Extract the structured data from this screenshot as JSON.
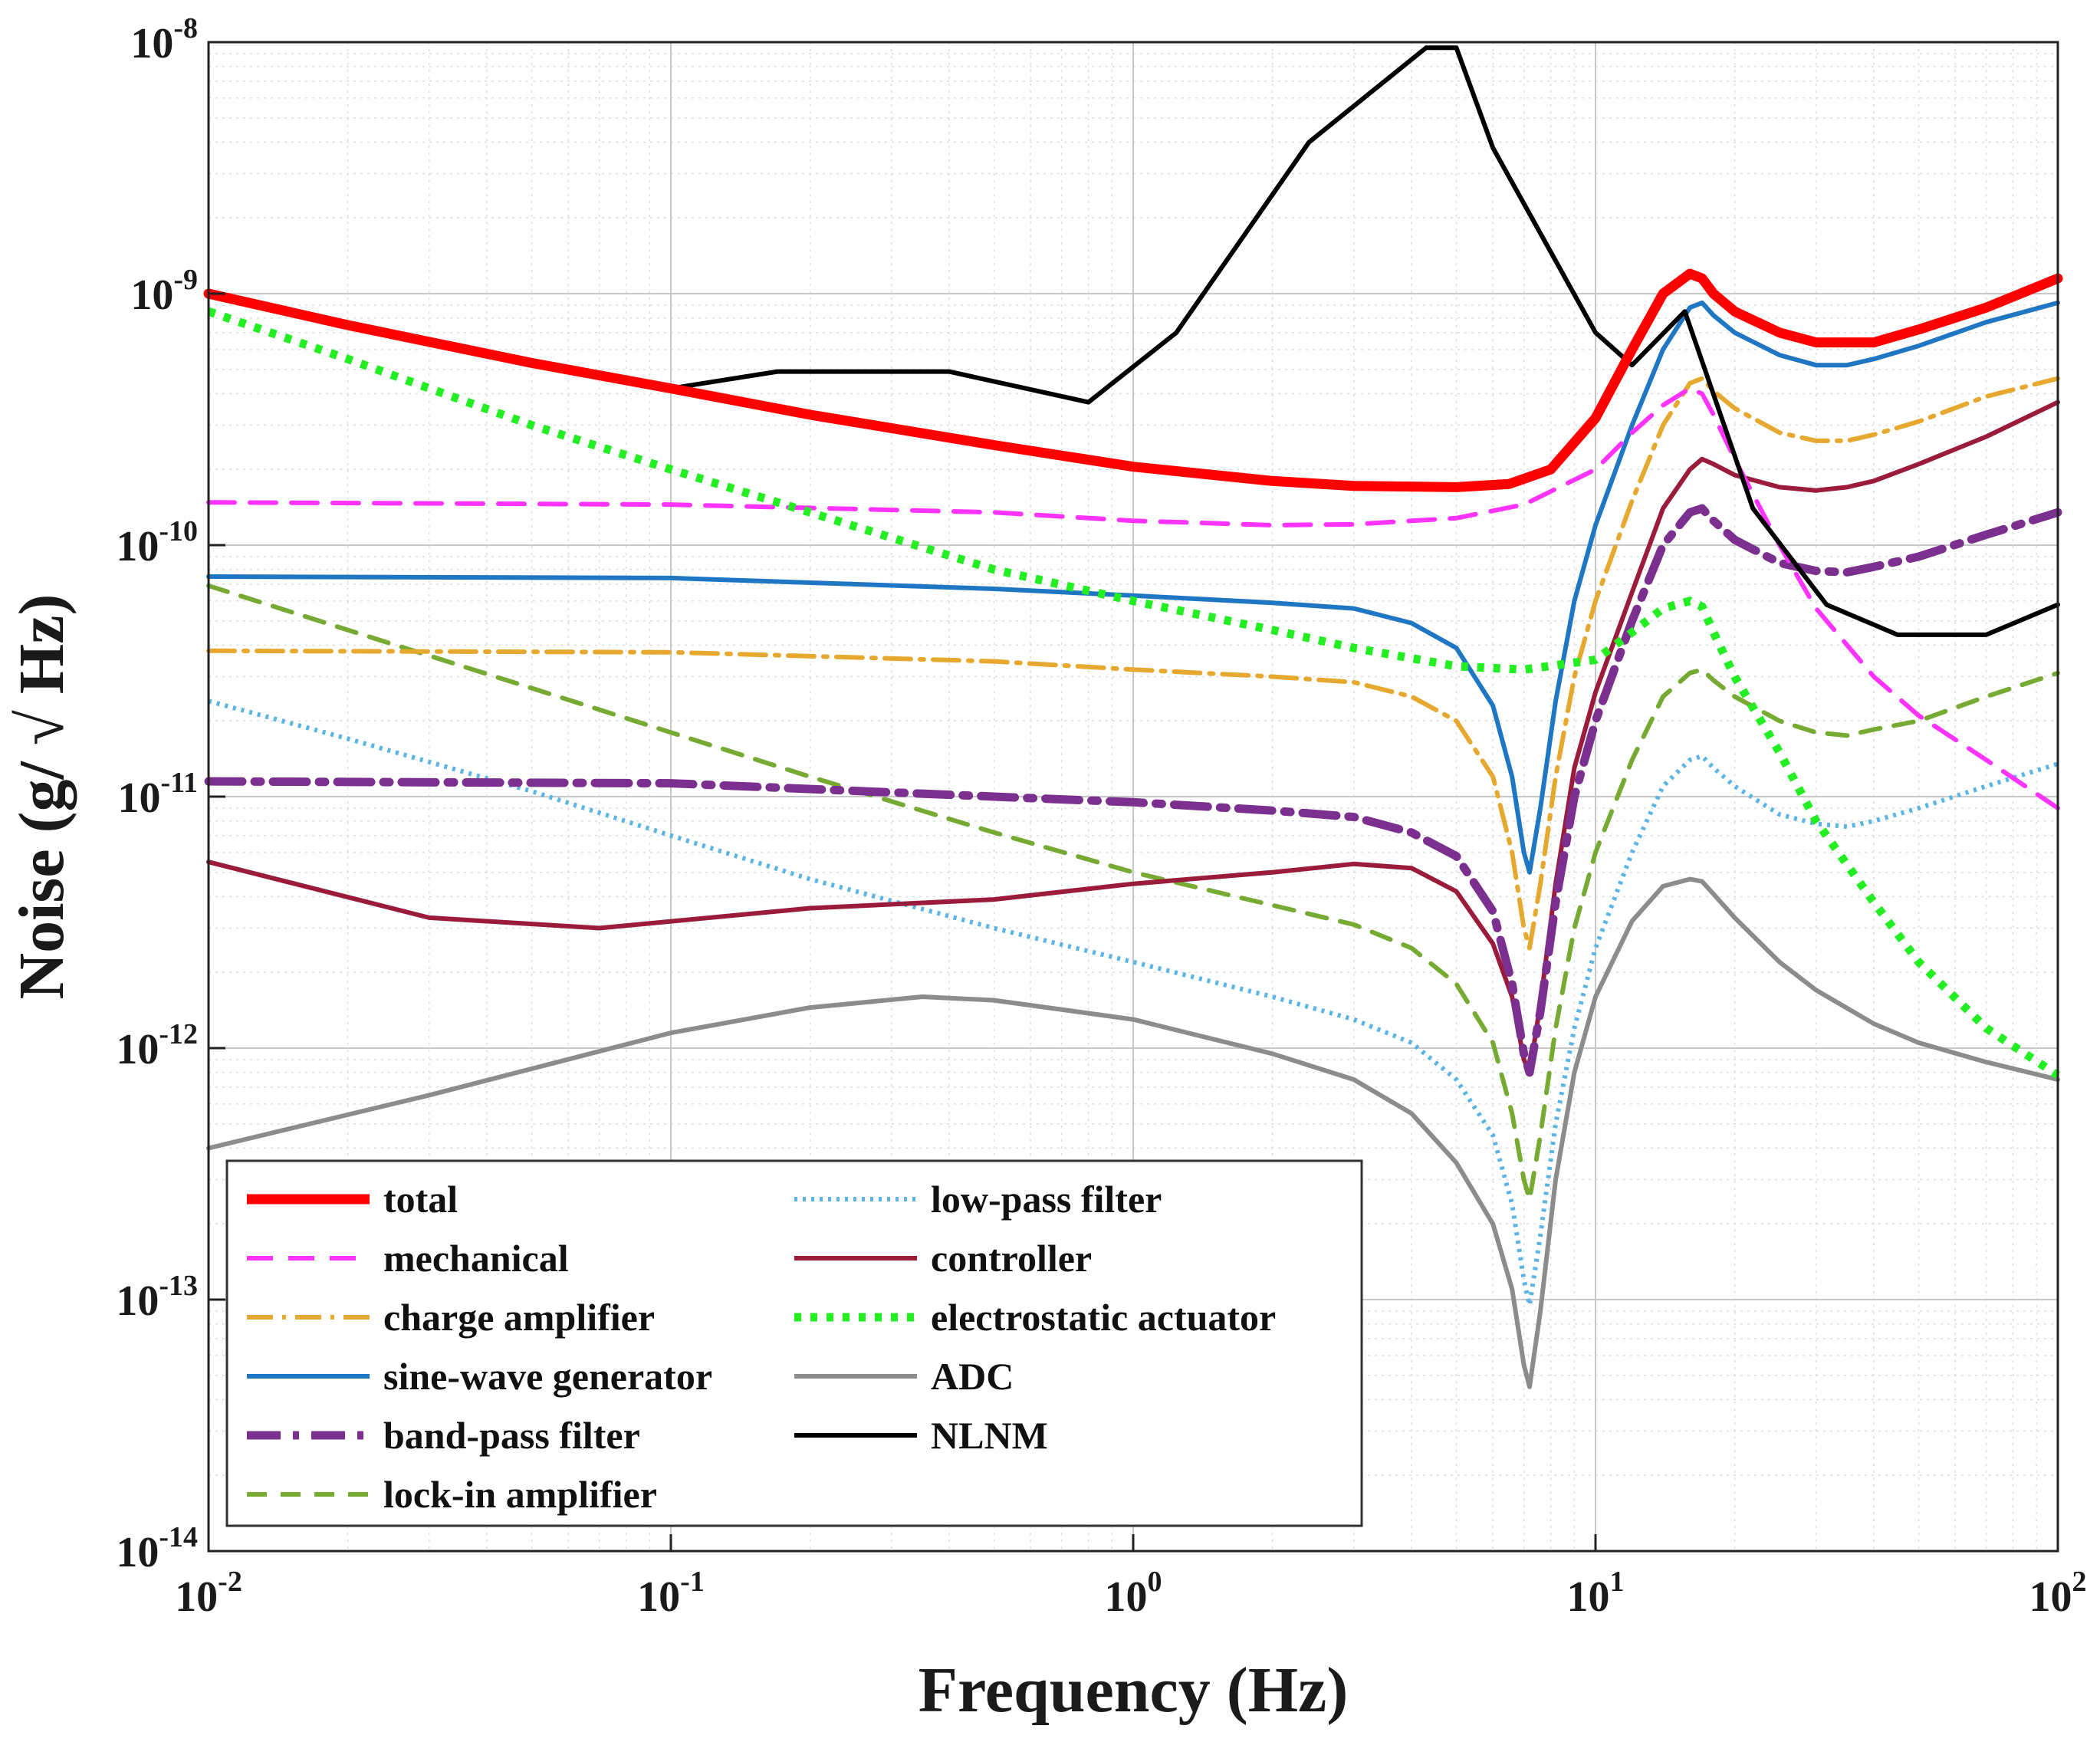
{
  "chart_data": {
    "type": "line",
    "xscale": "log",
    "yscale": "log",
    "xlim": [
      0.01,
      100
    ],
    "ylim": [
      1e-14,
      1e-08
    ],
    "grid": true,
    "xlabel": "Frequency (Hz)",
    "ylabel": "Noise (g/ √ Hz)",
    "legend_position": "bottom-left",
    "x_ticks": [
      {
        "base": "10",
        "exp": "-2"
      },
      {
        "base": "10",
        "exp": "-1"
      },
      {
        "base": "10",
        "exp": "0"
      },
      {
        "base": "10",
        "exp": "1"
      },
      {
        "base": "10",
        "exp": "2"
      }
    ],
    "y_ticks": [
      {
        "base": "10",
        "exp": "-8"
      },
      {
        "base": "10",
        "exp": "-9"
      },
      {
        "base": "10",
        "exp": "-10"
      },
      {
        "base": "10",
        "exp": "-11"
      },
      {
        "base": "10",
        "exp": "-12"
      },
      {
        "base": "10",
        "exp": "-13"
      },
      {
        "base": "10",
        "exp": "-14"
      }
    ],
    "series": [
      {
        "name": "total",
        "color": "#ff0000",
        "dash": "solid",
        "width": 13,
        "x": [
          0.01,
          0.02,
          0.05,
          0.1,
          0.2,
          0.5,
          1,
          2,
          3,
          5,
          6.5,
          8,
          10,
          12,
          14,
          16,
          17,
          18,
          20,
          25,
          30,
          40,
          50,
          70,
          100
        ],
        "y": [
          1e-09,
          7.5e-10,
          5.3e-10,
          4.2e-10,
          3.3e-10,
          2.5e-10,
          2.05e-10,
          1.8e-10,
          1.72e-10,
          1.7e-10,
          1.75e-10,
          2e-10,
          3.2e-10,
          6e-10,
          1e-09,
          1.2e-09,
          1.15e-09,
          1e-09,
          8.5e-10,
          7e-10,
          6.4e-10,
          6.4e-10,
          7.2e-10,
          8.8e-10,
          1.15e-09
        ]
      },
      {
        "name": "mechanical",
        "color": "#ff33ff",
        "dash": "long-dash",
        "width": 6,
        "x": [
          0.01,
          0.1,
          0.5,
          1,
          2,
          3,
          5,
          7,
          10,
          12,
          14,
          16,
          17,
          18,
          20,
          25,
          30,
          40,
          50,
          70,
          100
        ],
        "y": [
          1.48e-10,
          1.45e-10,
          1.35e-10,
          1.25e-10,
          1.2e-10,
          1.21e-10,
          1.28e-10,
          1.45e-10,
          2e-10,
          2.8e-10,
          3.6e-10,
          4.2e-10,
          4e-10,
          3.3e-10,
          2.2e-10,
          1e-10,
          5.6e-11,
          3e-11,
          2.1e-11,
          1.4e-11,
          9e-12
        ]
      },
      {
        "name": "charge amplifier",
        "color": "#e6a82e",
        "dash": "dash-dot",
        "width": 6,
        "x": [
          0.01,
          0.1,
          0.5,
          1,
          2,
          3,
          4,
          5,
          6,
          6.6,
          7.0,
          7.2,
          7.6,
          8.2,
          9,
          10,
          12,
          14,
          16,
          17,
          18,
          20,
          25,
          30,
          35,
          40,
          50,
          70,
          100
        ],
        "y": [
          3.8e-11,
          3.75e-11,
          3.45e-11,
          3.2e-11,
          3e-11,
          2.85e-11,
          2.5e-11,
          2e-11,
          1.2e-11,
          6e-12,
          3e-12,
          2.5e-12,
          4.5e-12,
          1.2e-11,
          3e-11,
          6e-11,
          1.5e-10,
          3e-10,
          4.4e-10,
          4.6e-10,
          4.1e-10,
          3.5e-10,
          2.8e-10,
          2.6e-10,
          2.6e-10,
          2.75e-10,
          3.1e-10,
          3.9e-10,
          4.6e-10
        ]
      },
      {
        "name": "sine-wave generator",
        "color": "#1f77c4",
        "dash": "solid",
        "width": 6,
        "x": [
          0.01,
          0.1,
          0.5,
          1,
          2,
          3,
          4,
          5,
          6,
          6.6,
          7.0,
          7.2,
          7.6,
          8.2,
          9,
          10,
          12,
          14,
          16,
          17,
          18,
          20,
          25,
          30,
          35,
          40,
          50,
          70,
          100
        ],
        "y": [
          7.5e-11,
          7.4e-11,
          6.7e-11,
          6.3e-11,
          5.9e-11,
          5.6e-11,
          4.9e-11,
          3.9e-11,
          2.3e-11,
          1.2e-11,
          6e-12,
          5e-12,
          9e-12,
          2.4e-11,
          6e-11,
          1.2e-10,
          3e-10,
          6e-10,
          8.8e-10,
          9.2e-10,
          8.2e-10,
          7e-10,
          5.7e-10,
          5.2e-10,
          5.2e-10,
          5.5e-10,
          6.2e-10,
          7.7e-10,
          9.2e-10
        ]
      },
      {
        "name": "band-pass filter",
        "color": "#7b2f8e",
        "dash": "dash-dot-thick",
        "width": 11,
        "x": [
          0.01,
          0.1,
          0.5,
          1,
          2,
          3,
          4,
          5,
          6,
          6.6,
          7.0,
          7.2,
          7.6,
          8.2,
          9,
          10,
          12,
          14,
          16,
          17,
          18,
          20,
          25,
          30,
          35,
          40,
          50,
          70,
          100
        ],
        "y": [
          1.15e-11,
          1.13e-11,
          1e-11,
          9.5e-12,
          8.8e-12,
          8.3e-12,
          7.2e-12,
          5.8e-12,
          3.5e-12,
          1.8e-12,
          9.5e-13,
          8e-13,
          1.4e-12,
          3.8e-12,
          1e-11,
          2e-11,
          5e-11,
          1e-10,
          1.35e-10,
          1.4e-10,
          1.25e-10,
          1.05e-10,
          8.5e-11,
          7.9e-11,
          7.8e-11,
          8.2e-11,
          9e-11,
          1.1e-10,
          1.35e-10
        ]
      },
      {
        "name": "lock-in amplifier",
        "color": "#77aa33",
        "dash": "medium-dash",
        "width": 6,
        "x": [
          0.01,
          0.02,
          0.05,
          0.1,
          0.2,
          0.5,
          1,
          2,
          3,
          4,
          5,
          6,
          6.6,
          7.0,
          7.2,
          7.6,
          8.2,
          9,
          10,
          12,
          14,
          16,
          17,
          18,
          20,
          25,
          30,
          35,
          40,
          50,
          70,
          100
        ],
        "y": [
          6.9e-11,
          4.6e-11,
          2.7e-11,
          1.8e-11,
          1.2e-11,
          7.2e-12,
          5e-12,
          3.7e-12,
          3.1e-12,
          2.5e-12,
          1.8e-12,
          1.05e-12,
          5.5e-13,
          3e-13,
          2.5e-13,
          4.5e-13,
          1.2e-12,
          3e-12,
          6e-12,
          1.4e-11,
          2.5e-11,
          3.1e-11,
          3.2e-11,
          2.9e-11,
          2.5e-11,
          2e-11,
          1.8e-11,
          1.75e-11,
          1.85e-11,
          2e-11,
          2.5e-11,
          3.1e-11
        ]
      },
      {
        "name": "low-pass filter",
        "color": "#5ab4e5",
        "dash": "dotted",
        "width": 6,
        "x": [
          0.01,
          0.02,
          0.05,
          0.1,
          0.2,
          0.5,
          1,
          2,
          3,
          4,
          5,
          6,
          6.6,
          7.0,
          7.2,
          7.6,
          8.2,
          9,
          10,
          12,
          14,
          16,
          17,
          18,
          20,
          25,
          30,
          35,
          40,
          50,
          70,
          100
        ],
        "y": [
          2.4e-11,
          1.7e-11,
          1.05e-11,
          7e-12,
          4.7e-12,
          3e-12,
          2.2e-12,
          1.6e-12,
          1.3e-12,
          1.05e-12,
          7.5e-13,
          4.5e-13,
          2.4e-13,
          1.2e-13,
          9.5e-14,
          1.8e-13,
          5e-13,
          1.2e-12,
          2.5e-12,
          6e-12,
          1.1e-11,
          1.4e-11,
          1.45e-11,
          1.3e-11,
          1.1e-11,
          8.5e-12,
          7.8e-12,
          7.6e-12,
          8e-12,
          9e-12,
          1.1e-11,
          1.35e-11
        ]
      },
      {
        "name": "controller",
        "color": "#9b1c3a",
        "dash": "solid",
        "width": 6,
        "x": [
          0.01,
          0.03,
          0.07,
          0.2,
          0.5,
          1,
          2,
          3,
          4,
          5,
          6,
          6.6,
          7.0,
          7.2,
          7.6,
          8.2,
          9,
          10,
          12,
          14,
          16,
          17,
          18,
          20,
          25,
          30,
          35,
          40,
          50,
          70,
          100
        ],
        "y": [
          5.5e-12,
          3.3e-12,
          3e-12,
          3.6e-12,
          3.9e-12,
          4.5e-12,
          5e-12,
          5.4e-12,
          5.2e-12,
          4.2e-12,
          2.6e-12,
          1.6e-12,
          9e-13,
          8e-13,
          1.5e-12,
          4.5e-12,
          1.3e-11,
          2.6e-11,
          6.5e-11,
          1.4e-10,
          2e-10,
          2.2e-10,
          2.1e-10,
          1.9e-10,
          1.7e-10,
          1.65e-10,
          1.7e-10,
          1.8e-10,
          2.1e-10,
          2.7e-10,
          3.7e-10
        ]
      },
      {
        "name": "electrostatic actuator",
        "color": "#22ee22",
        "dash": "dotted-thick",
        "width": 11,
        "x": [
          0.01,
          0.02,
          0.05,
          0.1,
          0.2,
          0.5,
          1,
          2,
          3,
          5,
          7,
          10,
          12,
          14,
          16,
          17,
          18,
          20,
          25,
          30,
          40,
          50,
          70,
          100
        ],
        "y": [
          8.5e-10,
          5.5e-10,
          3e-10,
          2e-10,
          1.35e-10,
          8e-11,
          6e-11,
          4.6e-11,
          3.9e-11,
          3.3e-11,
          3.2e-11,
          3.5e-11,
          4.5e-11,
          5.6e-11,
          6e-11,
          5.7e-11,
          4.5e-11,
          3e-11,
          1.5e-11,
          8e-12,
          3.8e-12,
          2.2e-12,
          1.2e-12,
          7.8e-13
        ]
      },
      {
        "name": "ADC",
        "color": "#8c8c8c",
        "dash": "solid",
        "width": 6,
        "x": [
          0.01,
          0.03,
          0.1,
          0.2,
          0.35,
          0.5,
          1,
          2,
          3,
          4,
          5,
          6,
          6.6,
          7.0,
          7.2,
          7.6,
          8.2,
          9,
          10,
          12,
          14,
          16,
          17,
          18,
          20,
          25,
          30,
          40,
          50,
          70,
          100
        ],
        "y": [
          4e-13,
          6.5e-13,
          1.15e-12,
          1.45e-12,
          1.6e-12,
          1.55e-12,
          1.3e-12,
          9.5e-13,
          7.5e-13,
          5.5e-13,
          3.5e-13,
          2e-13,
          1.1e-13,
          5.5e-14,
          4.5e-14,
          9e-14,
          3e-13,
          8e-13,
          1.6e-12,
          3.2e-12,
          4.4e-12,
          4.7e-12,
          4.6e-12,
          4.1e-12,
          3.3e-12,
          2.2e-12,
          1.7e-12,
          1.25e-12,
          1.05e-12,
          8.8e-13,
          7.5e-13
        ]
      },
      {
        "name": "NLNM",
        "color": "#000000",
        "dash": "solid",
        "width": 6,
        "x": [
          0.1,
          0.17,
          0.4,
          0.8,
          1.24,
          2.4,
          4.3,
          5.0,
          6.0,
          10,
          12,
          15.6,
          21.9,
          31.6,
          45,
          70,
          100
        ],
        "y": [
          4.2e-10,
          4.9e-10,
          4.9e-10,
          3.7e-10,
          7e-10,
          4e-09,
          9.5e-09,
          9.5e-09,
          3.8e-09,
          7e-10,
          5.2e-10,
          8.5e-10,
          1.4e-10,
          5.8e-11,
          4.4e-11,
          4.4e-11,
          5.8e-11
        ]
      }
    ]
  }
}
